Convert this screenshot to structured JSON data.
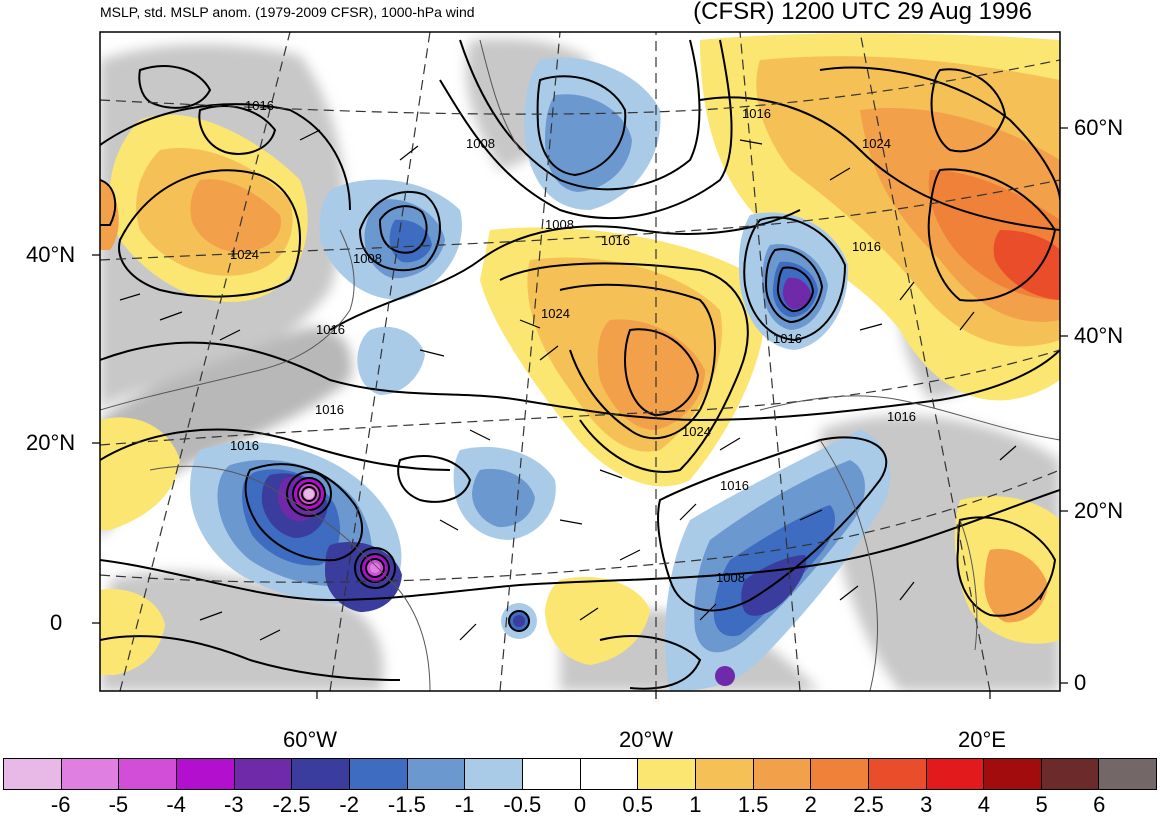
{
  "title": {
    "left": "MSLP, std. MSLP anom. (1979-2009 CFSR), 1000-hPa wind",
    "right": "(CFSR) 1200 UTC 29 Aug 1996"
  },
  "axes": {
    "left_lat": [
      "40°N",
      "20°N",
      "0"
    ],
    "right_lat": [
      "60°N",
      "40°N",
      "20°N",
      "0"
    ],
    "bottom_lon": [
      "60°W",
      "20°W",
      "20°E"
    ]
  },
  "contour_labels": [
    "1016",
    "1008",
    "1016",
    "1024",
    "1008",
    "1016",
    "1024",
    "1008",
    "1016",
    "1016",
    "1024",
    "1016",
    "1024",
    "1016",
    "1016",
    "1016",
    "1016",
    "1008"
  ],
  "colorbar": {
    "colors": [
      "#e8b8e6",
      "#e07fe2",
      "#d24ed9",
      "#b20fcf",
      "#6e2aa9",
      "#3b3d9e",
      "#3d6cc0",
      "#6c98d0",
      "#a9cbe8",
      "#ffffff",
      "#ffffff",
      "#fbe671",
      "#f5c156",
      "#f2a04a",
      "#ef8238",
      "#ea4d2a",
      "#e31a1c",
      "#a20c0c",
      "#6d2a2a",
      "#736867"
    ],
    "labels": [
      "-6",
      "-5",
      "-4",
      "-3",
      "-2.5",
      "-2",
      "-1.5",
      "-1",
      "-0.5",
      "0",
      "0.5",
      "1",
      "1.5",
      "2",
      "2.5",
      "3",
      "4",
      "5",
      "6"
    ]
  }
}
